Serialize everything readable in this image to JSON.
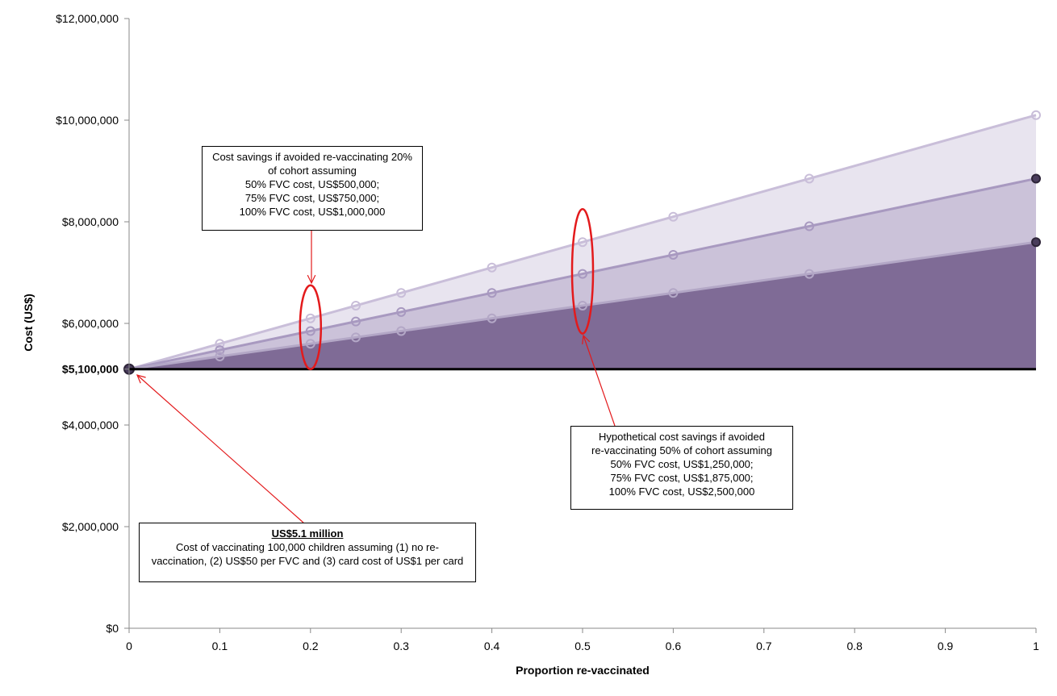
{
  "chart_data": {
    "type": "area",
    "title": "",
    "xlabel": "Proportion re-vaccinated",
    "ylabel": "Cost (US$)",
    "xlim": [
      0,
      1
    ],
    "ylim": [
      0,
      12000000
    ],
    "x_ticks": [
      0,
      0.1,
      0.2,
      0.3,
      0.4,
      0.5,
      0.6,
      0.7,
      0.8,
      0.9,
      1
    ],
    "x_tick_labels": [
      "0",
      "0.1",
      "0.2",
      "0.3",
      "0.4",
      "0.5",
      "0.6",
      "0.7",
      "0.8",
      "0.9",
      "1"
    ],
    "y_ticks": [
      0,
      2000000,
      4000000,
      5100000,
      6000000,
      8000000,
      10000000,
      12000000
    ],
    "y_tick_labels": [
      "$0",
      "$2,000,000",
      "$4,000,000",
      "$5,100,000",
      "$6,000,000",
      "$8,000,000",
      "$10,000,000",
      "$12,000,000"
    ],
    "bold_tick_label": "$5,100,000",
    "grid": false,
    "legend": "none",
    "baseline": {
      "value": 5100000,
      "color": "#000000"
    },
    "series": [
      {
        "color": "#e8e4ef",
        "marker_color": "#c9bed9",
        "x": [
          0,
          0.1,
          0.2,
          0.25,
          0.3,
          0.4,
          0.5,
          0.6,
          0.75,
          1
        ],
        "y": [
          5100000,
          5600000,
          6100000,
          6350000,
          6600000,
          7100000,
          7600000,
          8100000,
          8850000,
          10100000
        ]
      },
      {
        "color": "#cbc2d9",
        "marker_color": "#a899c0",
        "x": [
          0,
          0.1,
          0.2,
          0.25,
          0.3,
          0.4,
          0.5,
          0.6,
          0.75,
          1
        ],
        "y": [
          5100000,
          5475000,
          5850000,
          6037500,
          6225000,
          6600000,
          6975000,
          7350000,
          7912500,
          8850000
        ]
      },
      {
        "color": "#7f6b96",
        "marker_color": "#b3a7c6",
        "x": [
          0,
          0.1,
          0.2,
          0.25,
          0.3,
          0.4,
          0.5,
          0.6,
          0.75,
          1
        ],
        "y": [
          5100000,
          5350000,
          5600000,
          5725000,
          5850000,
          6100000,
          6350000,
          6600000,
          6975000,
          7600000
        ]
      }
    ],
    "highlight_ellipses": [
      {
        "x": 0.2,
        "y_low": 5100000,
        "y_high": 6750000,
        "color": "#e31a1c"
      },
      {
        "x": 0.5,
        "y_low": 5800000,
        "y_high": 8250000,
        "color": "#e31a1c"
      }
    ]
  },
  "annotations": {
    "note_20": {
      "lines": [
        "Cost savings if avoided re-vaccinating 20%",
        "of cohort assuming",
        "50% FVC cost, US$500,000;",
        "75% FVC cost, US$750,000;",
        "100% FVC cost, US$1,000,000"
      ]
    },
    "note_50": {
      "lines": [
        "Hypothetical cost savings if avoided",
        "re-vaccinating 50% of cohort assuming",
        "50% FVC cost, US$1,250,000;",
        "75% FVC cost, US$1,875,000;",
        "100% FVC cost, US$2,500,000"
      ]
    },
    "note_base": {
      "heading": "US$5.1 million",
      "lines": [
        "Cost of vaccinating 100,000 children assuming (1) no re-",
        "vaccination, (2) US$50 per FVC and (3) card cost of US$1 per card"
      ]
    },
    "arrow_color": "#e31a1c"
  }
}
